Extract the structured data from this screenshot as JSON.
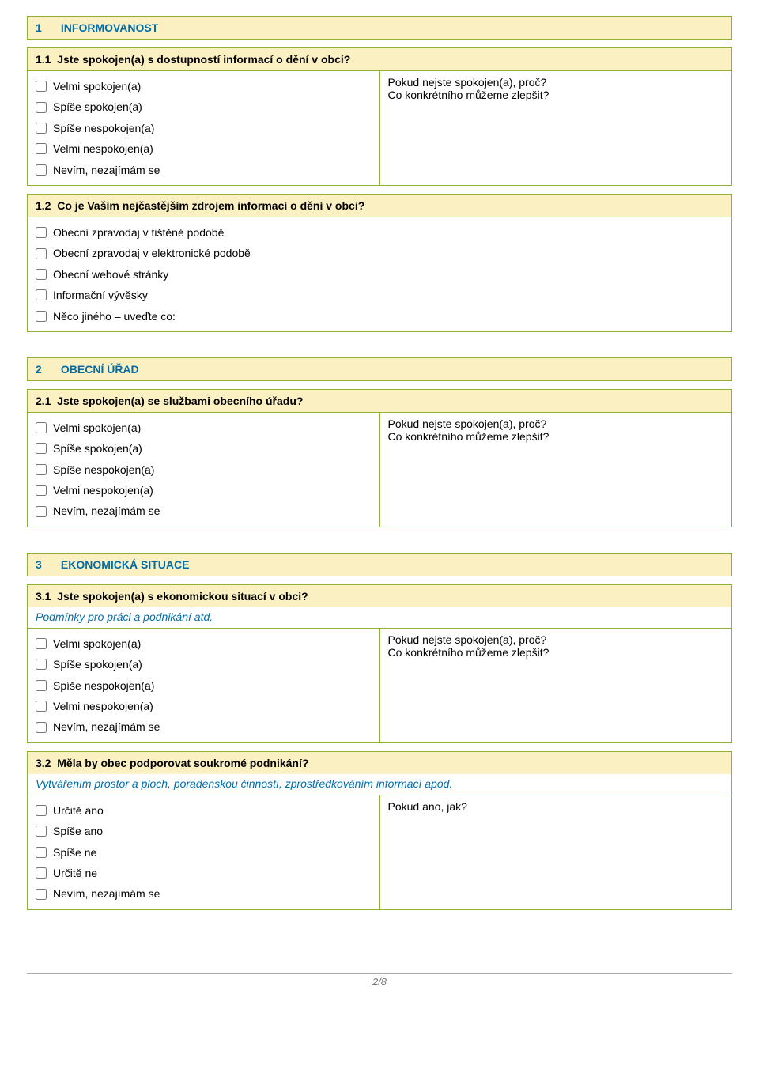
{
  "sections": [
    {
      "num": "1",
      "title": "INFORMOVANOST"
    },
    {
      "num": "2",
      "title": "OBECNÍ ÚŘAD"
    },
    {
      "num": "3",
      "title": "EKONOMICKÁ SITUACE"
    }
  ],
  "satisfaction_options": [
    "Velmi spokojen(a)",
    "Spíše spokojen(a)",
    "Spíše nespokojen(a)",
    "Velmi nespokojen(a)",
    "Nevím, nezajímám se"
  ],
  "yesno_options": [
    "Určitě ano",
    "Spíše ano",
    "Spíše ne",
    "Určitě ne",
    "Nevím, nezajímám se"
  ],
  "q12_options": [
    "Obecní zpravodaj v tištěné podobě",
    "Obecní zpravodaj v elektronické podobě",
    "Obecní webové stránky",
    "Informační vývěsky",
    "Něco jiného – uveďte co:"
  ],
  "prompt_line1": "Pokud nejste spokojen(a), proč?",
  "prompt_line2": "Co konkrétního můžeme zlepšit?",
  "prompt_yes": "Pokud ano, jak?",
  "q11": {
    "num": "1.1",
    "text": "Jste spokojen(a) s dostupností informací o dění v obci?"
  },
  "q12": {
    "num": "1.2",
    "text": "Co je Vaším nejčastějším zdrojem informací o dění v obci?"
  },
  "q21": {
    "num": "2.1",
    "text": "Jste spokojen(a) se službami obecního úřadu?"
  },
  "q31": {
    "num": "3.1",
    "text": "Jste spokojen(a) s ekonomickou situací v obci?",
    "sub": "Podmínky pro práci a podnikání atd."
  },
  "q32": {
    "num": "3.2",
    "text": "Měla by obec podporovat soukromé podnikání?",
    "sub": "Vytvářením prostor a ploch, poradenskou činností, zprostředkováním informací apod."
  },
  "footer": "2/8"
}
